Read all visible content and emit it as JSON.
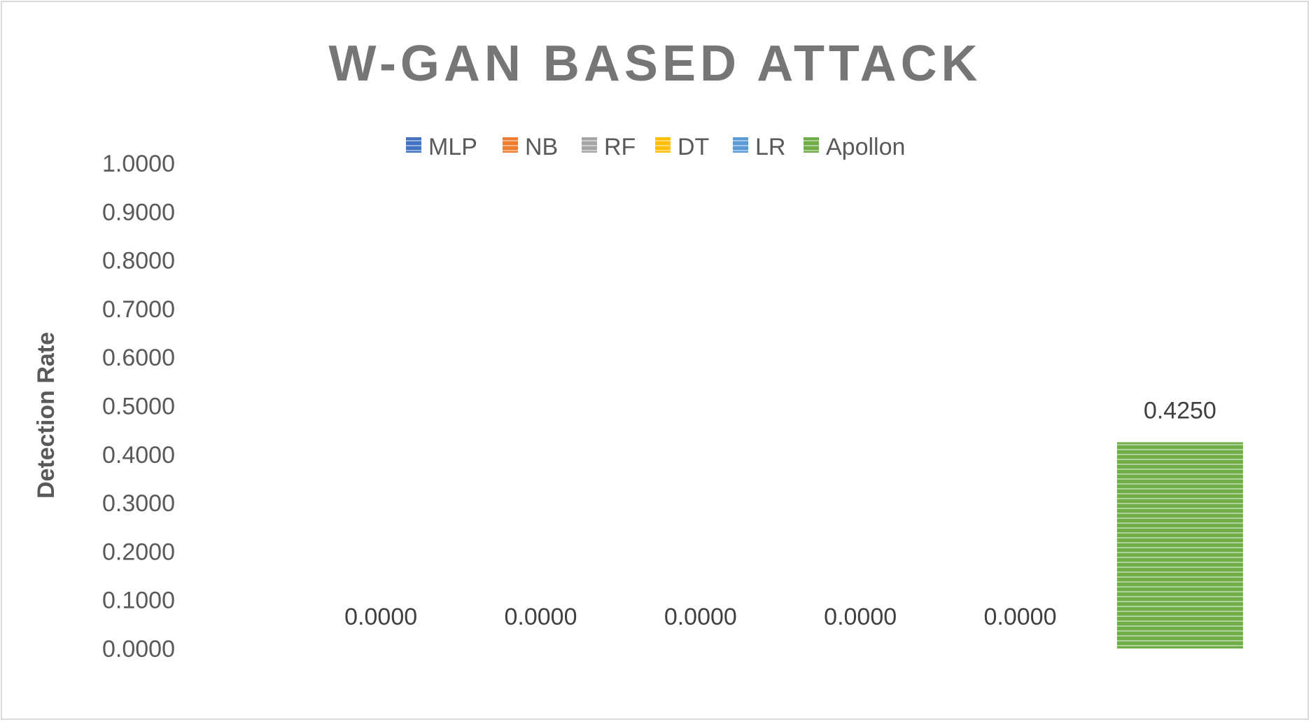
{
  "chart_data": {
    "type": "bar",
    "title": "W-GAN BASED ATTACK",
    "xlabel": "",
    "ylabel": "Detection Rate",
    "ylim": [
      0,
      1
    ],
    "yticks": [
      "0.0000",
      "0.1000",
      "0.2000",
      "0.3000",
      "0.4000",
      "0.5000",
      "0.6000",
      "0.7000",
      "0.8000",
      "0.9000",
      "1.0000"
    ],
    "grid": false,
    "legend_position": "top",
    "series": [
      {
        "name": "MLP",
        "value": 0,
        "label": "0.0000",
        "color": "#4472c4"
      },
      {
        "name": "NB",
        "value": 0,
        "label": "0.0000",
        "color": "#ed7d31"
      },
      {
        "name": "RF",
        "value": 0,
        "label": "0.0000",
        "color": "#a5a5a5"
      },
      {
        "name": "DT",
        "value": 0,
        "label": "0.0000",
        "color": "#ffc000"
      },
      {
        "name": "LR",
        "value": 0,
        "label": "0.0000",
        "color": "#5b9bd5"
      },
      {
        "name": "Apollon",
        "value": 0.425,
        "label": "0.4250",
        "color": "#70ad47"
      }
    ]
  }
}
